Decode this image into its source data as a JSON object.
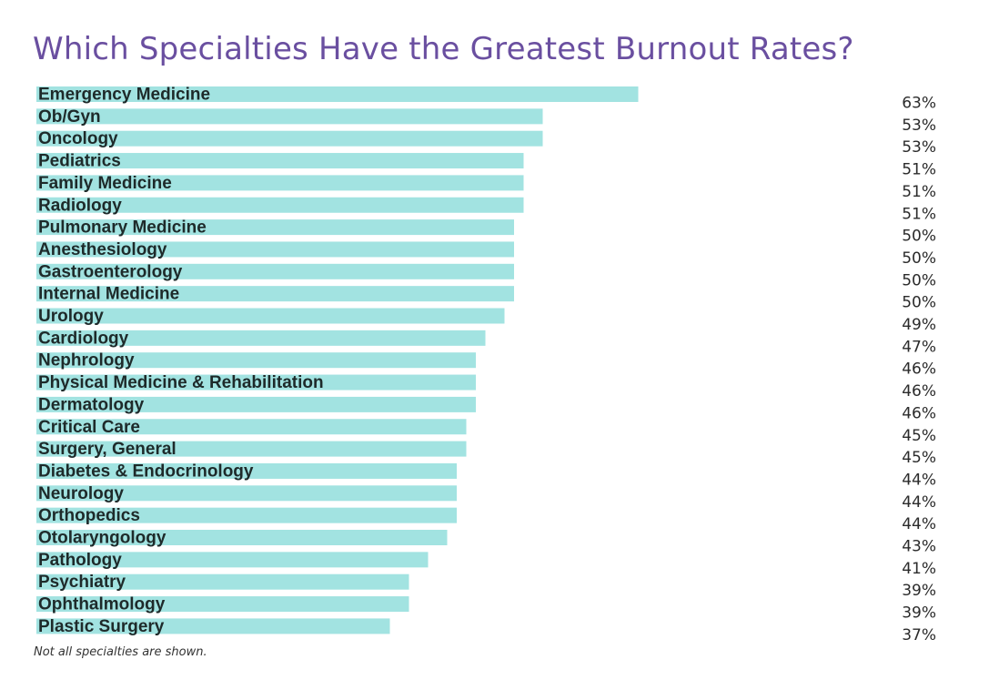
{
  "chart_data": {
    "type": "bar",
    "orientation": "horizontal",
    "title": "Which Specialties Have the Greatest Burnout Rates?",
    "note": "Not all specialties are shown.",
    "bar_color": "#a2e3e1",
    "title_color": "#6a4fa0",
    "value_suffix": "%",
    "xlim": [
      0,
      100
    ],
    "grid": false,
    "categories": [
      "Emergency Medicine",
      "Ob/Gyn",
      "Oncology",
      "Pediatrics",
      "Family Medicine",
      "Radiology",
      "Pulmonary Medicine",
      "Anesthesiology",
      "Gastroenterology",
      "Internal Medicine",
      "Urology",
      "Cardiology",
      "Nephrology",
      "Physical Medicine & Rehabilitation",
      "Dermatology",
      "Critical Care",
      "Surgery, General",
      "Diabetes & Endocrinology",
      "Neurology",
      "Orthopedics",
      "Otolaryngology",
      "Pathology",
      "Psychiatry",
      "Ophthalmology",
      "Plastic Surgery"
    ],
    "values": [
      63,
      53,
      53,
      51,
      51,
      51,
      50,
      50,
      50,
      50,
      49,
      47,
      46,
      46,
      46,
      45,
      45,
      44,
      44,
      44,
      43,
      41,
      39,
      39,
      37
    ],
    "value_labels": [
      "63%",
      "53%",
      "53%",
      "51%",
      "51%",
      "51%",
      "50%",
      "50%",
      "50%",
      "50%",
      "49%",
      "47%",
      "46%",
      "46%",
      "46%",
      "45%",
      "45%",
      "44%",
      "44%",
      "44%",
      "43%",
      "41%",
      "39%",
      "39%",
      "37%"
    ]
  }
}
